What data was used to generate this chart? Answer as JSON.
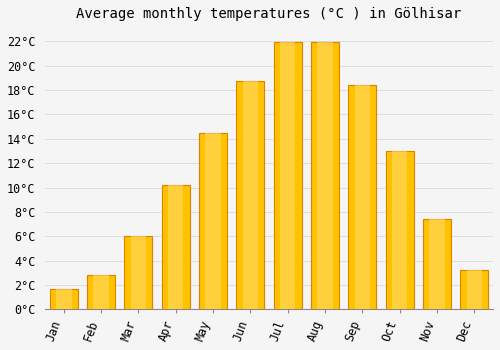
{
  "title": "Average monthly temperatures (°C ) in Gölhisar",
  "months": [
    "Jan",
    "Feb",
    "Mar",
    "Apr",
    "May",
    "Jun",
    "Jul",
    "Aug",
    "Sep",
    "Oct",
    "Nov",
    "Dec"
  ],
  "temperatures": [
    1.7,
    2.8,
    6.0,
    10.2,
    14.5,
    18.7,
    21.9,
    21.9,
    18.4,
    13.0,
    7.4,
    3.2
  ],
  "bar_color_main": "#FFC200",
  "bar_color_edge": "#E08000",
  "bar_color_light": "#FFD966",
  "background_color": "#f5f5f5",
  "grid_color": "#dddddd",
  "ylim": [
    0,
    23.0
  ],
  "yticks": [
    0,
    2,
    4,
    6,
    8,
    10,
    12,
    14,
    16,
    18,
    20,
    22
  ],
  "ytick_labels": [
    "0°C",
    "2°C",
    "4°C",
    "6°C",
    "8°C",
    "10°C",
    "12°C",
    "14°C",
    "16°C",
    "18°C",
    "20°C",
    "22°C"
  ],
  "title_fontsize": 10,
  "tick_fontsize": 8.5,
  "bar_width": 0.75
}
